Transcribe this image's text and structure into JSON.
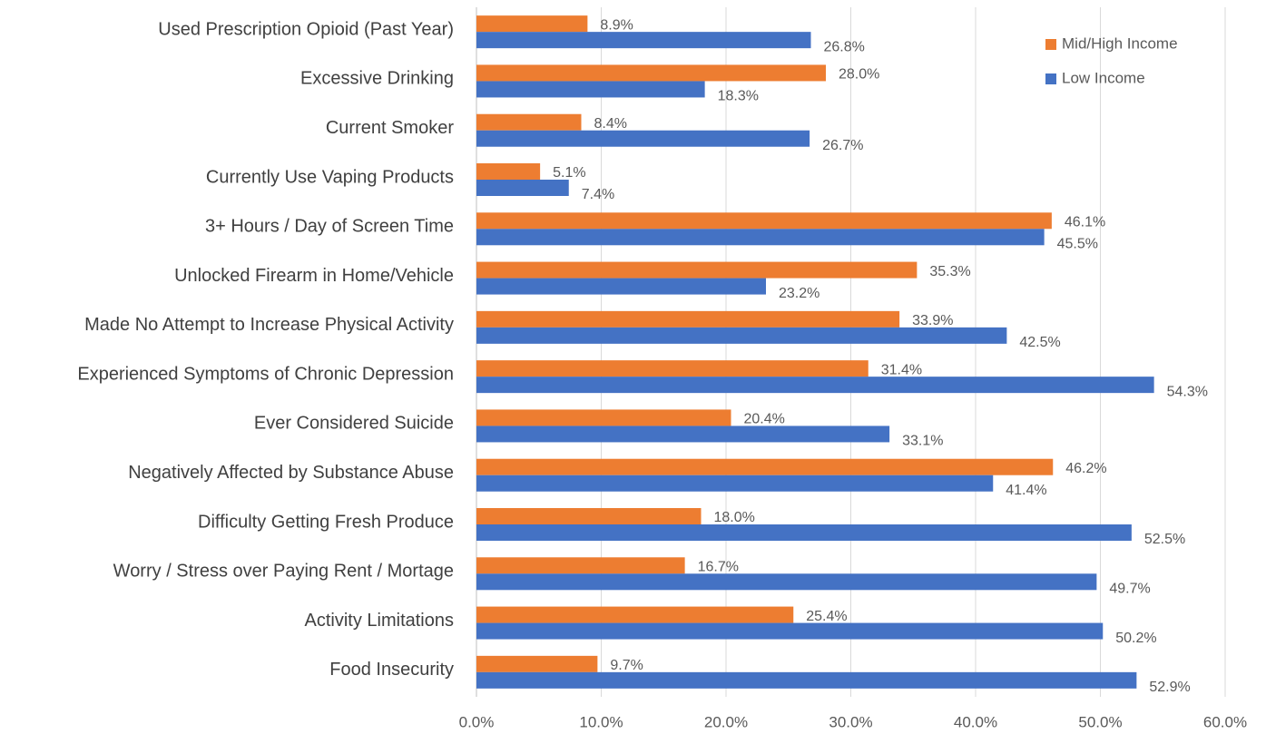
{
  "chart_data": {
    "type": "hbar",
    "categories": [
      "Used Prescription Opioid (Past Year)",
      "Excessive Drinking",
      "Current Smoker",
      "Currently Use Vaping Products",
      "3+ Hours / Day of Screen Time",
      "Unlocked Firearm in Home/Vehicle",
      "Made No Attempt to Increase Physical Activity",
      "Experienced Symptoms of Chronic Depression",
      "Ever Considered Suicide",
      "Negatively Affected by Substance Abuse",
      "Difficulty Getting Fresh Produce",
      "Worry / Stress over Paying Rent / Mortage",
      "Activity Limitations",
      "Food Insecurity"
    ],
    "series": [
      {
        "name": "Mid/High Income",
        "color": "#ed7d31",
        "values": [
          8.9,
          28.0,
          8.4,
          5.1,
          46.1,
          35.3,
          33.9,
          31.4,
          20.4,
          46.2,
          18.0,
          16.7,
          25.4,
          9.7
        ],
        "value_labels": [
          "8.9%",
          "28.0%",
          "8.4%",
          "5.1%",
          "46.1%",
          "35.3%",
          "33.9%",
          "31.4%",
          "20.4%",
          "46.2%",
          "18.0%",
          "16.7%",
          "25.4%",
          "9.7%"
        ]
      },
      {
        "name": "Low Income",
        "color": "#4472c4",
        "values": [
          26.8,
          18.3,
          26.7,
          7.4,
          45.5,
          23.2,
          42.5,
          54.3,
          33.1,
          41.4,
          52.5,
          49.7,
          50.2,
          52.9
        ],
        "value_labels": [
          "26.8%",
          "18.3%",
          "26.7%",
          "7.4%",
          "45.5%",
          "23.2%",
          "42.5%",
          "54.3%",
          "33.1%",
          "41.4%",
          "52.5%",
          "49.7%",
          "50.2%",
          "52.9%"
        ]
      }
    ],
    "xlim": [
      0,
      60
    ],
    "xticks": [
      {
        "value": 0,
        "label": "0.0%"
      },
      {
        "value": 10,
        "label": "10.0%"
      },
      {
        "value": 20,
        "label": "20.0%"
      },
      {
        "value": 30,
        "label": "30.0%"
      },
      {
        "value": 40,
        "label": "40.0%"
      },
      {
        "value": 50,
        "label": "50.0%"
      },
      {
        "value": 60,
        "label": "60.0%"
      }
    ],
    "grid": true,
    "legend": "top-right"
  }
}
